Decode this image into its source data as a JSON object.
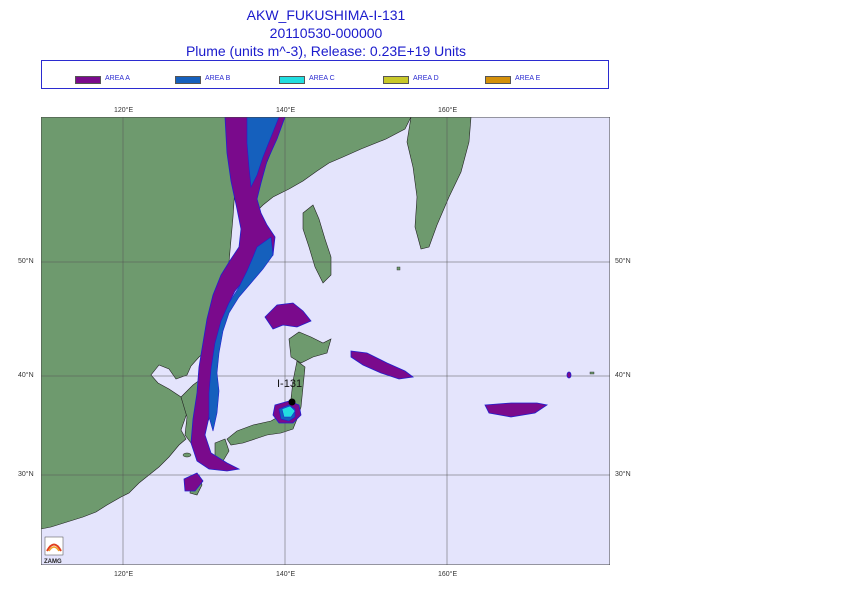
{
  "title": {
    "line1": "AKW_FUKUSHIMA-I-131",
    "line2": "20110530-000000",
    "line3": "Plume (units m^-3), Release:  0.23E+19 Units"
  },
  "legend": [
    {
      "label": "AREA A",
      "color": "#7a0a8c"
    },
    {
      "label": "AREA B",
      "color": "#1560bd"
    },
    {
      "label": "AREA C",
      "color": "#22dde0"
    },
    {
      "label": "AREA D",
      "color": "#c8c82a"
    },
    {
      "label": "AREA E",
      "color": "#d4900a"
    }
  ],
  "axes": {
    "lon_ticks_top": [
      "120°E",
      "140°E",
      "160°E"
    ],
    "lon_ticks_bottom": [
      "120°E",
      "140°E",
      "160°E"
    ],
    "lat_ticks_left": [
      "50°N",
      "40°N",
      "30°N"
    ],
    "lat_ticks_right": [
      "50°N",
      "40°N",
      "30°N"
    ]
  },
  "map": {
    "source_label": "I-131",
    "logo_text": "ZAMG",
    "ocean_color": "#e4e4fc",
    "land_color": "#6e9a6e",
    "grid_color": "#555555"
  }
}
